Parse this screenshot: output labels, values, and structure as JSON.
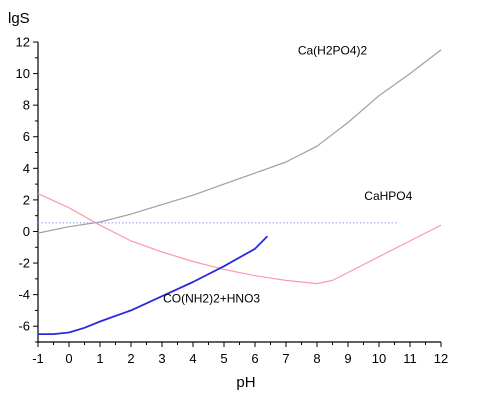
{
  "chart_data": {
    "type": "line",
    "xlabel": "pH",
    "ylabel": "lgS",
    "xlim": [
      -1,
      12
    ],
    "ylim": [
      -7,
      12
    ],
    "x_ticks": [
      -1,
      0,
      1,
      2,
      3,
      4,
      5,
      6,
      7,
      8,
      9,
      10,
      11,
      12
    ],
    "y_ticks": [
      -6,
      -4,
      -2,
      0,
      2,
      4,
      6,
      8,
      10,
      12
    ],
    "grid": false,
    "series": [
      {
        "name": "Ca(H2PO4)2",
        "color": "#a0a0a0",
        "style": "solid",
        "points": [
          [
            -1,
            -0.1
          ],
          [
            0,
            0.3
          ],
          [
            1,
            0.6
          ],
          [
            2,
            1.1
          ],
          [
            3,
            1.7
          ],
          [
            4,
            2.3
          ],
          [
            5,
            3.0
          ],
          [
            6,
            3.7
          ],
          [
            7,
            4.4
          ],
          [
            8,
            5.4
          ],
          [
            9,
            6.9
          ],
          [
            10,
            8.6
          ],
          [
            11,
            10.0
          ],
          [
            12,
            11.5
          ]
        ]
      },
      {
        "name": "CaHPO4",
        "color": "#ff9aa8",
        "style": "solid",
        "points": [
          [
            -1,
            2.4
          ],
          [
            0,
            1.5
          ],
          [
            1,
            0.4
          ],
          [
            2,
            -0.6
          ],
          [
            3,
            -1.3
          ],
          [
            4,
            -1.9
          ],
          [
            5,
            -2.4
          ],
          [
            6,
            -2.8
          ],
          [
            7,
            -3.1
          ],
          [
            8,
            -3.3
          ],
          [
            8.5,
            -3.1
          ],
          [
            9,
            -2.6
          ],
          [
            10,
            -1.6
          ],
          [
            11,
            -0.6
          ],
          [
            12,
            0.4
          ]
        ]
      },
      {
        "name": "",
        "color": "#9aa8e8",
        "style": "dotted",
        "points": [
          [
            -1,
            0.55
          ],
          [
            10.6,
            0.55
          ]
        ]
      },
      {
        "name": "CO(NH2)2+HNO3",
        "color": "#2a2ad8",
        "style": "solid",
        "points": [
          [
            -1,
            -6.5
          ],
          [
            -0.5,
            -6.5
          ],
          [
            0,
            -6.4
          ],
          [
            0.5,
            -6.1
          ],
          [
            1,
            -5.7
          ],
          [
            2,
            -5.0
          ],
          [
            3,
            -4.1
          ],
          [
            4,
            -3.2
          ],
          [
            5,
            -2.2
          ],
          [
            6,
            -1.1
          ],
          [
            6.4,
            -0.3
          ]
        ]
      }
    ],
    "annotations": [
      {
        "text": "Ca(H2PO4)2",
        "x": 8.5,
        "y": 11.2
      },
      {
        "text": "CaHPO4",
        "x": 10.3,
        "y": 2.0
      },
      {
        "text": "CO(NH2)2+HNO3",
        "x": 4.6,
        "y": -4.5
      }
    ]
  }
}
